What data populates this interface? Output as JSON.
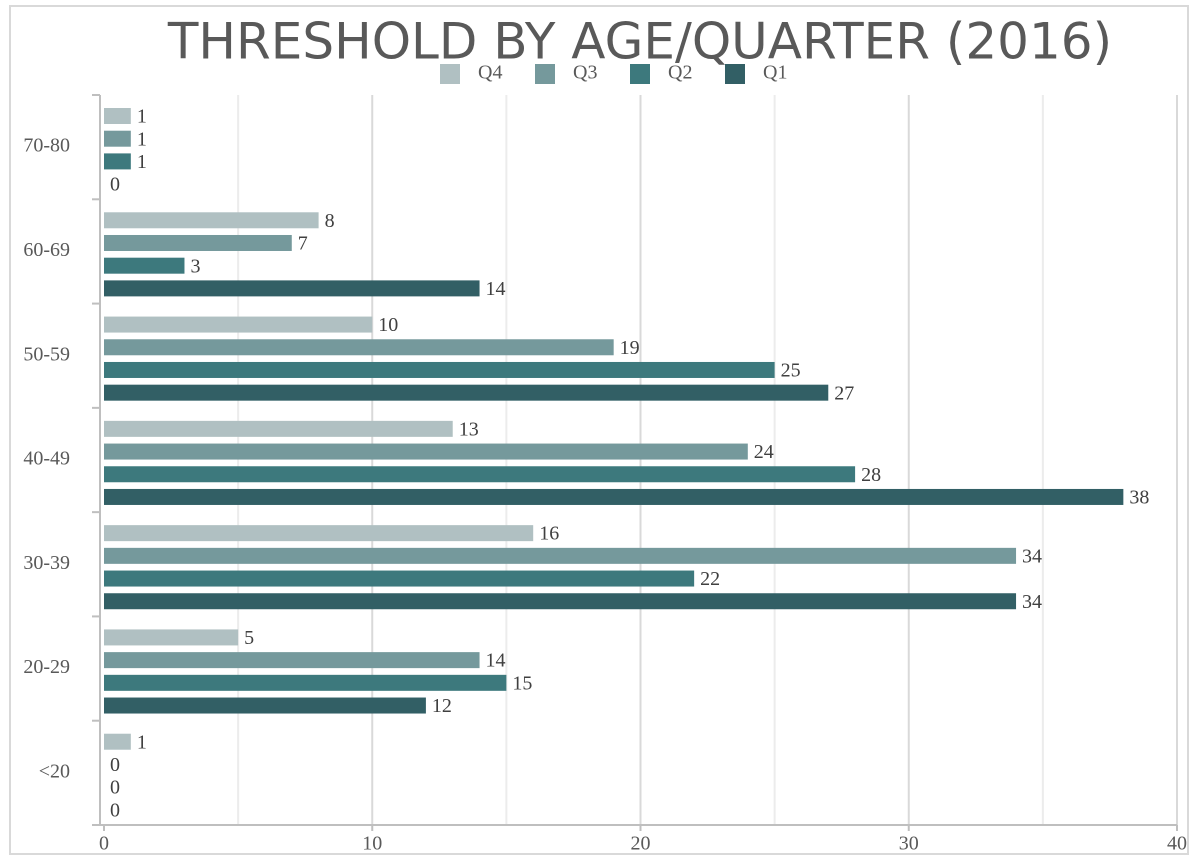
{
  "chart_data": {
    "type": "hbar",
    "title": "THRESHOLD BY AGE/QUARTER (2016)",
    "categories": [
      "70-80",
      "60-69",
      "50-59",
      "40-49",
      "30-39",
      "20-29",
      "<20"
    ],
    "series": [
      {
        "name": "Q4",
        "color": "#b0c0c2",
        "values": [
          1,
          8,
          10,
          13,
          16,
          5,
          1
        ]
      },
      {
        "name": "Q3",
        "color": "#75999c",
        "values": [
          1,
          7,
          19,
          24,
          34,
          14,
          0
        ]
      },
      {
        "name": "Q2",
        "color": "#3d797d",
        "values": [
          1,
          3,
          25,
          28,
          22,
          15,
          0
        ]
      },
      {
        "name": "Q1",
        "color": "#325f65",
        "values": [
          0,
          14,
          27,
          38,
          34,
          12,
          0
        ]
      }
    ],
    "xlim": [
      0,
      40
    ],
    "xticks": [
      0,
      10,
      20,
      30,
      40
    ],
    "minor_grid": [
      5,
      15,
      25,
      35
    ],
    "grid": true,
    "legend": "top"
  }
}
